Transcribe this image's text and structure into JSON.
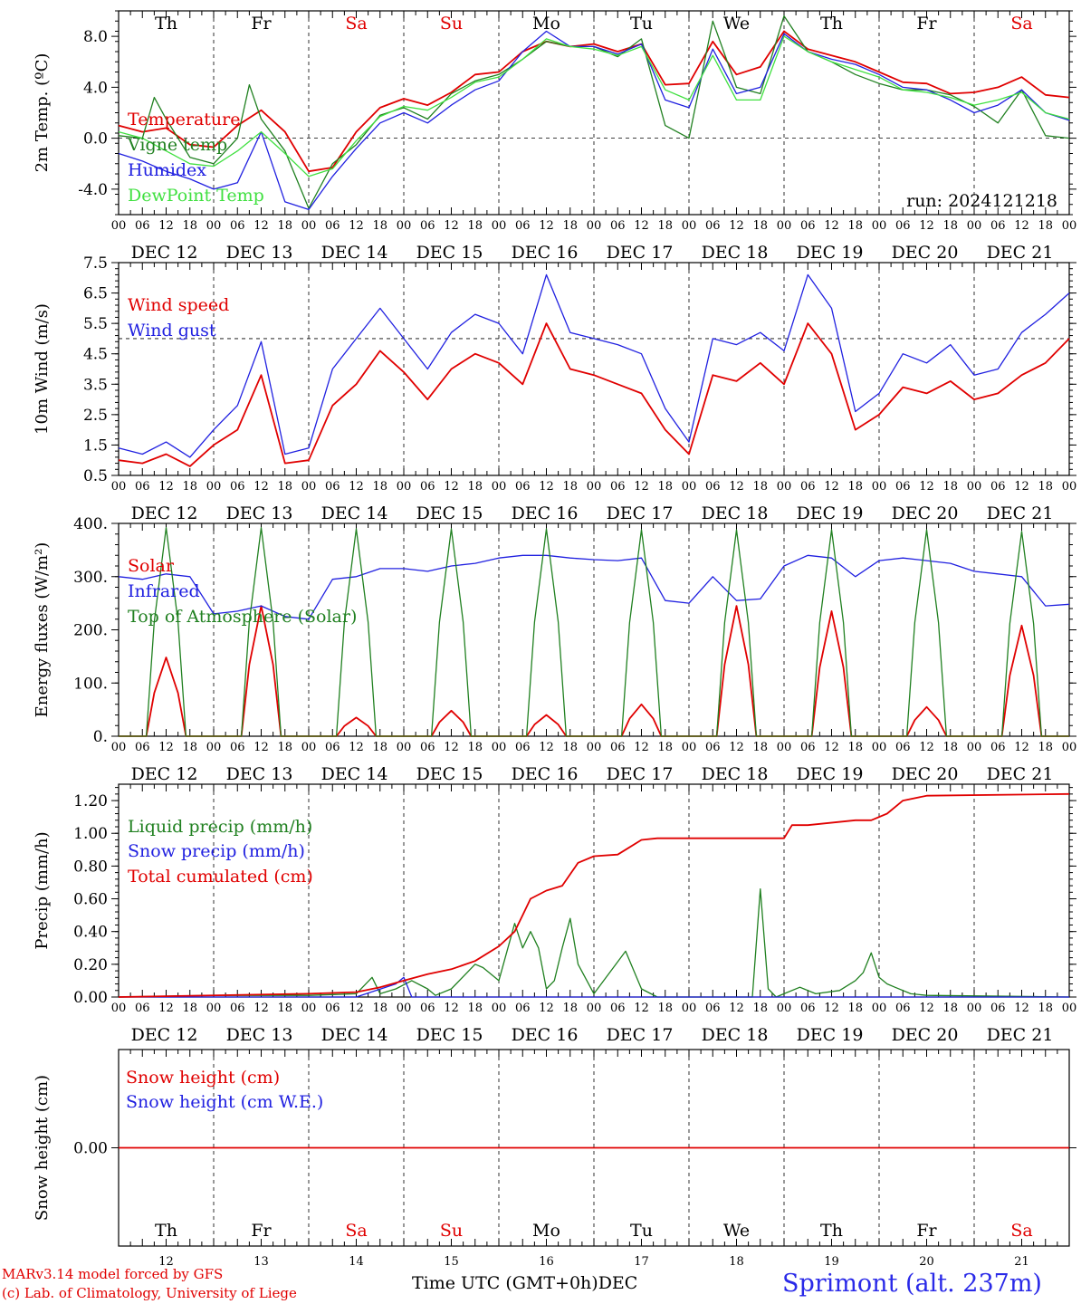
{
  "header": {
    "run_label": "run: 2024121218"
  },
  "days": [
    "Th",
    "Fr",
    "Sa",
    "Su",
    "Mo",
    "Tu",
    "We",
    "Th",
    "Fr",
    "Sa"
  ],
  "weekend_days": [
    2,
    3,
    9
  ],
  "dates": [
    "DEC 12",
    "DEC 13",
    "DEC 14",
    "DEC 15",
    "DEC 16",
    "DEC 17",
    "DEC 18",
    "DEC 19",
    "DEC 20",
    "DEC 21"
  ],
  "day_numbers": [
    "12",
    "13",
    "14",
    "15",
    "16",
    "17",
    "18",
    "19",
    "20",
    "21"
  ],
  "hour_ticks": [
    "00",
    "06",
    "12",
    "18"
  ],
  "final_hour_label": "00",
  "colors": {
    "red": "#e00000",
    "green": "#208020",
    "blue": "#2020e0",
    "lightgreen": "#40e040"
  },
  "footer": {
    "model": "MARv3.14 model forced by GFS",
    "lab": "(c) Lab. of Climatology, University of Liege",
    "axis_title": "Time UTC (GMT+0h)",
    "month": "DEC",
    "station": "Sprimont (alt. 237m)"
  },
  "chart_data": [
    {
      "type": "line",
      "ylabel": "2m Temp. (ºC)",
      "ylim": [
        -6.0,
        10.0
      ],
      "yticks": [
        "-4.0",
        "0.0",
        "4.0",
        "8.0"
      ],
      "ytick_values": [
        -4,
        0,
        4,
        8
      ],
      "ref_line": 0,
      "series": [
        {
          "name": "Temperature",
          "color": "red",
          "x": [
            0,
            6,
            12,
            18,
            24,
            30,
            36,
            42,
            48,
            54,
            60,
            66,
            72,
            78,
            84,
            90,
            96,
            102,
            108,
            114,
            120,
            126,
            132,
            138,
            144,
            150,
            156,
            162,
            168,
            174,
            180,
            186,
            192,
            198,
            204,
            210,
            216,
            222,
            228,
            234,
            240
          ],
          "values": [
            1.0,
            0.5,
            0.8,
            -0.5,
            -0.7,
            1.0,
            2.2,
            0.5,
            -2.6,
            -2.3,
            0.5,
            2.4,
            3.1,
            2.6,
            3.6,
            5.0,
            5.2,
            6.8,
            7.6,
            7.2,
            7.4,
            6.8,
            7.4,
            4.2,
            4.3,
            7.6,
            5.0,
            5.6,
            8.4,
            7.0,
            6.5,
            6.0,
            5.2,
            4.4,
            4.3,
            3.5,
            3.6,
            4.0,
            4.8,
            3.4,
            3.2
          ]
        },
        {
          "name": "Vigne temp",
          "color": "green",
          "x": [
            0,
            6,
            9,
            12,
            18,
            24,
            30,
            33,
            36,
            42,
            48,
            54,
            60,
            66,
            72,
            78,
            84,
            90,
            96,
            102,
            108,
            114,
            120,
            126,
            132,
            138,
            144,
            150,
            156,
            162,
            168,
            174,
            180,
            186,
            192,
            198,
            204,
            210,
            216,
            222,
            228,
            234,
            240
          ],
          "values": [
            0.2,
            0.0,
            3.2,
            1.5,
            -1.5,
            -2.0,
            0.0,
            4.2,
            1.5,
            -1.0,
            -5.5,
            -2.0,
            -0.5,
            1.8,
            2.4,
            1.5,
            3.5,
            4.5,
            5.0,
            6.2,
            7.6,
            7.2,
            7.2,
            6.4,
            7.8,
            1.0,
            0.0,
            9.2,
            4.0,
            3.5,
            9.6,
            6.8,
            6.0,
            5.0,
            4.3,
            3.8,
            3.8,
            3.4,
            2.5,
            1.2,
            3.8,
            0.2,
            0.0
          ]
        },
        {
          "name": "Humidex",
          "color": "blue",
          "x": [
            0,
            6,
            12,
            18,
            24,
            30,
            36,
            42,
            48,
            54,
            60,
            66,
            72,
            78,
            84,
            90,
            96,
            102,
            108,
            114,
            120,
            126,
            132,
            138,
            144,
            150,
            156,
            162,
            168,
            174,
            180,
            186,
            192,
            198,
            204,
            210,
            216,
            222,
            228,
            234,
            240
          ],
          "values": [
            -1.2,
            -1.8,
            -2.6,
            -3.2,
            -4.0,
            -3.5,
            0.5,
            -5.0,
            -5.6,
            -3.0,
            -0.8,
            1.2,
            2.0,
            1.2,
            2.6,
            3.8,
            4.5,
            6.8,
            8.4,
            7.2,
            7.2,
            6.6,
            7.4,
            3.0,
            2.4,
            7.0,
            3.5,
            4.0,
            8.2,
            6.8,
            6.2,
            5.8,
            5.0,
            4.0,
            3.8,
            3.0,
            2.0,
            2.6,
            3.8,
            2.0,
            1.4
          ]
        },
        {
          "name": "DewPoint Temp",
          "color": "lightgreen",
          "x": [
            0,
            6,
            12,
            18,
            24,
            30,
            36,
            42,
            48,
            54,
            60,
            66,
            72,
            78,
            84,
            90,
            96,
            102,
            108,
            114,
            120,
            126,
            132,
            138,
            144,
            150,
            156,
            162,
            168,
            174,
            180,
            186,
            192,
            198,
            204,
            210,
            216,
            222,
            228,
            234,
            240
          ],
          "values": [
            0.5,
            0.0,
            -1.0,
            -2.0,
            -2.2,
            -1.0,
            0.5,
            -1.2,
            -3.0,
            -2.4,
            -0.2,
            1.7,
            2.5,
            2.2,
            3.2,
            4.4,
            4.8,
            6.2,
            7.8,
            7.2,
            7.0,
            6.5,
            7.2,
            3.8,
            3.0,
            6.5,
            3.0,
            3.0,
            8.0,
            6.8,
            6.0,
            5.4,
            4.8,
            3.8,
            3.6,
            3.2,
            2.6,
            3.0,
            3.6,
            2.0,
            1.5
          ]
        }
      ]
    },
    {
      "type": "line",
      "ylabel": "10m Wind (m/s)",
      "ylim": [
        0.5,
        7.5
      ],
      "yticks": [
        "0.5",
        "1.5",
        "2.5",
        "3.5",
        "4.5",
        "5.5",
        "6.5",
        "7.5"
      ],
      "ytick_values": [
        0.5,
        1.5,
        2.5,
        3.5,
        4.5,
        5.5,
        6.5,
        7.5
      ],
      "ref_line": 5.0,
      "series": [
        {
          "name": "Wind speed",
          "color": "red",
          "x": [
            0,
            6,
            12,
            18,
            24,
            30,
            36,
            42,
            48,
            54,
            60,
            66,
            72,
            78,
            84,
            90,
            96,
            102,
            108,
            114,
            120,
            126,
            132,
            138,
            144,
            150,
            156,
            162,
            168,
            174,
            180,
            186,
            192,
            198,
            204,
            210,
            216,
            222,
            228,
            234,
            240
          ],
          "values": [
            1.0,
            0.9,
            1.2,
            0.8,
            1.5,
            2.0,
            3.8,
            0.9,
            1.0,
            2.8,
            3.5,
            4.6,
            3.9,
            3.0,
            4.0,
            4.5,
            4.2,
            3.5,
            5.5,
            4.0,
            3.8,
            3.5,
            3.2,
            2.0,
            1.2,
            3.8,
            3.6,
            4.2,
            3.5,
            5.5,
            4.5,
            2.0,
            2.5,
            3.4,
            3.2,
            3.6,
            3.0,
            3.2,
            3.8,
            4.2,
            5.0
          ]
        },
        {
          "name": "Wind gust",
          "color": "blue",
          "x": [
            0,
            6,
            12,
            18,
            24,
            30,
            36,
            42,
            48,
            54,
            60,
            66,
            72,
            78,
            84,
            90,
            96,
            102,
            108,
            114,
            120,
            126,
            132,
            138,
            144,
            150,
            156,
            162,
            168,
            174,
            180,
            186,
            192,
            198,
            204,
            210,
            216,
            222,
            228,
            234,
            240
          ],
          "values": [
            1.4,
            1.2,
            1.6,
            1.1,
            2.0,
            2.8,
            4.9,
            1.2,
            1.4,
            4.0,
            5.0,
            6.0,
            5.0,
            4.0,
            5.2,
            5.8,
            5.5,
            4.5,
            7.1,
            5.2,
            5.0,
            4.8,
            4.5,
            2.7,
            1.6,
            5.0,
            4.8,
            5.2,
            4.6,
            7.1,
            6.0,
            2.6,
            3.2,
            4.5,
            4.2,
            4.8,
            3.8,
            4.0,
            5.2,
            5.8,
            6.5
          ]
        }
      ]
    },
    {
      "type": "line",
      "ylabel": "Energy fluxes (W/m²)",
      "ylim": [
        0,
        400
      ],
      "yticks": [
        "0.",
        "100.",
        "200.",
        "300.",
        "400."
      ],
      "ytick_values": [
        0,
        100,
        200,
        300,
        400
      ],
      "series": [
        {
          "name": "Solar",
          "color": "red",
          "peaks": [
            148,
            245,
            35,
            48,
            40,
            60,
            245,
            235,
            55,
            208
          ]
        },
        {
          "name": "Infrared",
          "color": "blue",
          "x": [
            0,
            6,
            12,
            18,
            24,
            30,
            36,
            42,
            48,
            54,
            60,
            66,
            72,
            78,
            84,
            90,
            96,
            102,
            108,
            114,
            120,
            126,
            132,
            138,
            144,
            150,
            156,
            162,
            168,
            174,
            180,
            186,
            192,
            198,
            204,
            210,
            216,
            222,
            228,
            234,
            240
          ],
          "values": [
            300,
            295,
            305,
            300,
            230,
            235,
            245,
            225,
            220,
            295,
            300,
            315,
            315,
            310,
            320,
            325,
            335,
            340,
            340,
            335,
            332,
            330,
            335,
            255,
            250,
            300,
            255,
            258,
            320,
            340,
            335,
            300,
            330,
            335,
            330,
            325,
            310,
            305,
            300,
            245,
            248
          ]
        },
        {
          "name": "Top of Atmosphere (Solar)",
          "color": "green",
          "peaks": [
            392,
            392,
            390,
            390,
            390,
            388,
            388,
            388,
            388,
            385
          ]
        }
      ]
    },
    {
      "type": "line",
      "ylabel": "Precip (mm/h)",
      "ylim": [
        0,
        1.3
      ],
      "yticks": [
        "0.00",
        "0.20",
        "0.40",
        "0.60",
        "0.80",
        "1.00",
        "1.20"
      ],
      "ytick_values": [
        0,
        0.2,
        0.4,
        0.6,
        0.8,
        1.0,
        1.2
      ],
      "series": [
        {
          "name": "Liquid precip (mm/h)",
          "color": "green",
          "x": [
            0,
            24,
            48,
            60,
            64,
            66,
            70,
            74,
            78,
            80,
            84,
            88,
            90,
            92,
            96,
            100,
            102,
            104,
            106,
            108,
            110,
            112,
            114,
            116,
            120,
            128,
            132,
            136,
            140,
            144,
            160,
            162,
            164,
            166,
            168,
            172,
            176,
            182,
            186,
            188,
            190,
            192,
            194,
            196,
            200,
            204,
            240
          ],
          "values": [
            0,
            0.01,
            0.01,
            0.02,
            0.12,
            0.02,
            0.05,
            0.1,
            0.05,
            0.01,
            0.05,
            0.15,
            0.2,
            0.18,
            0.1,
            0.45,
            0.3,
            0.4,
            0.3,
            0.05,
            0.1,
            0.3,
            0.48,
            0.2,
            0.02,
            0.28,
            0.05,
            0.0,
            0.0,
            0.0,
            0.0,
            0.66,
            0.05,
            0.0,
            0.02,
            0.06,
            0.02,
            0.04,
            0.1,
            0.15,
            0.27,
            0.12,
            0.08,
            0.06,
            0.02,
            0.01,
            0.0
          ]
        },
        {
          "name": "Snow precip (mm/h)",
          "color": "blue",
          "x": [
            0,
            60,
            70,
            72,
            74,
            240
          ],
          "values": [
            0,
            0,
            0.08,
            0.12,
            0,
            0
          ]
        },
        {
          "name": "Total cumulated (cm)",
          "color": "red",
          "x": [
            0,
            48,
            60,
            66,
            72,
            78,
            84,
            90,
            96,
            100,
            102,
            104,
            108,
            112,
            114,
            116,
            120,
            126,
            128,
            132,
            136,
            144,
            168,
            170,
            174,
            186,
            190,
            194,
            198,
            204,
            240
          ],
          "values": [
            0.0,
            0.02,
            0.03,
            0.06,
            0.1,
            0.14,
            0.17,
            0.22,
            0.31,
            0.4,
            0.5,
            0.6,
            0.65,
            0.68,
            0.75,
            0.82,
            0.86,
            0.87,
            0.9,
            0.96,
            0.97,
            0.97,
            0.97,
            1.05,
            1.05,
            1.08,
            1.08,
            1.12,
            1.2,
            1.23,
            1.24
          ]
        }
      ]
    },
    {
      "type": "line",
      "ylabel": "Snow height (cm)",
      "ylim": [
        -1,
        1
      ],
      "yticks": [
        "0.00"
      ],
      "ytick_values": [
        0
      ],
      "series": [
        {
          "name": "Snow height (cm)",
          "color": "red",
          "x": [
            0,
            240
          ],
          "values": [
            0,
            0
          ]
        },
        {
          "name": "Snow height (cm W.E.)",
          "color": "blue",
          "x": [],
          "values": []
        }
      ]
    }
  ]
}
